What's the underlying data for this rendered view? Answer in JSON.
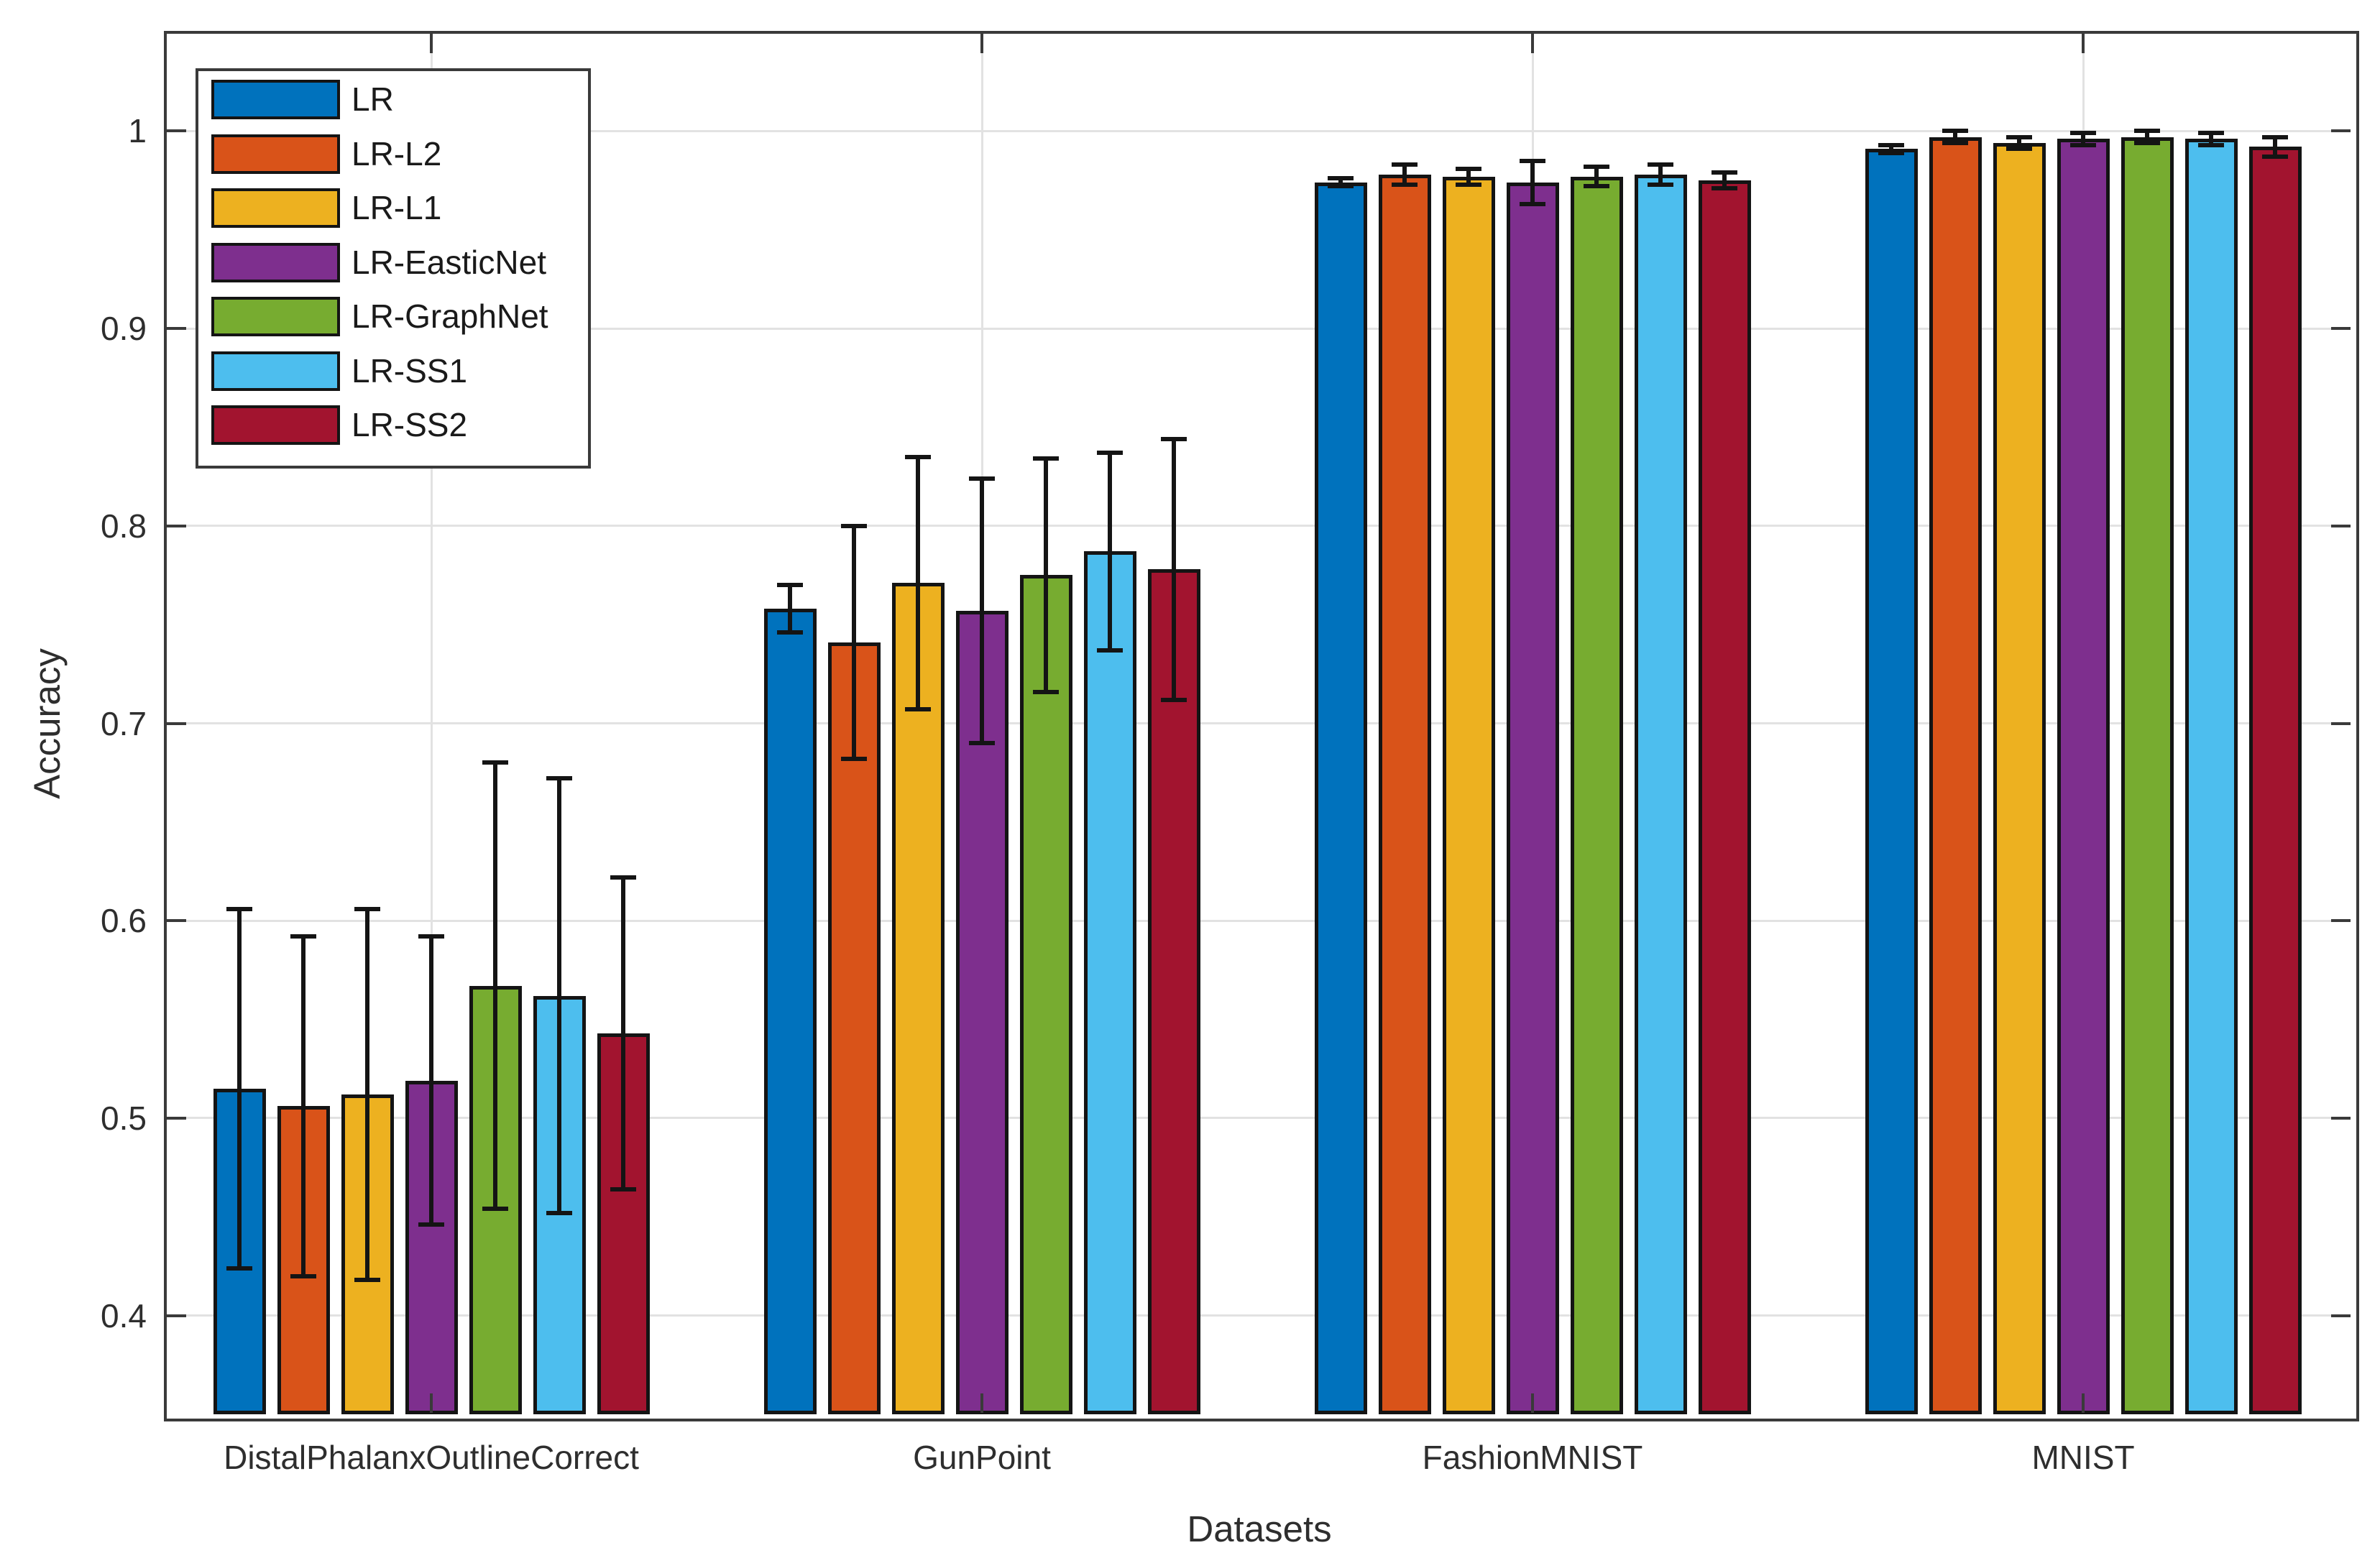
{
  "figure": {
    "ylabel": "Accuracy",
    "xlabel": "Datasets"
  },
  "chart_data": {
    "type": "bar",
    "title": "",
    "xlabel": "Datasets",
    "ylabel": "Accuracy",
    "ylim": [
      0.35,
      1.05
    ],
    "yticks": [
      0.4,
      0.5,
      0.6,
      0.7,
      0.8,
      0.9,
      1.0
    ],
    "grid": true,
    "error_bars": true,
    "legend_position": "upper-left",
    "categories": [
      "DistalPhalanxOutlineCorrect",
      "GunPoint",
      "FashionMNIST",
      "MNIST"
    ],
    "series": [
      {
        "name": "LR",
        "color": "#0072BD",
        "values": [
          0.515,
          0.758,
          0.974,
          0.991
        ],
        "errors": [
          0.091,
          0.012,
          0.002,
          0.002
        ]
      },
      {
        "name": "LR-L2",
        "color": "#D95319",
        "values": [
          0.506,
          0.741,
          0.978,
          0.997
        ],
        "errors": [
          0.086,
          0.059,
          0.005,
          0.003
        ]
      },
      {
        "name": "LR-L1",
        "color": "#EDB120",
        "values": [
          0.512,
          0.771,
          0.977,
          0.994
        ],
        "errors": [
          0.094,
          0.064,
          0.004,
          0.003
        ]
      },
      {
        "name": "LR-EasticNet",
        "color": "#7E2F8E",
        "values": [
          0.519,
          0.757,
          0.974,
          0.996
        ],
        "errors": [
          0.073,
          0.067,
          0.011,
          0.003
        ]
      },
      {
        "name": "LR-GraphNet",
        "color": "#77AC30",
        "values": [
          0.567,
          0.775,
          0.977,
          0.997
        ],
        "errors": [
          0.113,
          0.059,
          0.005,
          0.003
        ]
      },
      {
        "name": "LR-SS1",
        "color": "#4DBEEE",
        "values": [
          0.562,
          0.787,
          0.978,
          0.996
        ],
        "errors": [
          0.11,
          0.05,
          0.005,
          0.003
        ]
      },
      {
        "name": "LR-SS2",
        "color": "#A2142F",
        "values": [
          0.543,
          0.778,
          0.975,
          0.992
        ],
        "errors": [
          0.079,
          0.066,
          0.004,
          0.005
        ]
      }
    ]
  }
}
